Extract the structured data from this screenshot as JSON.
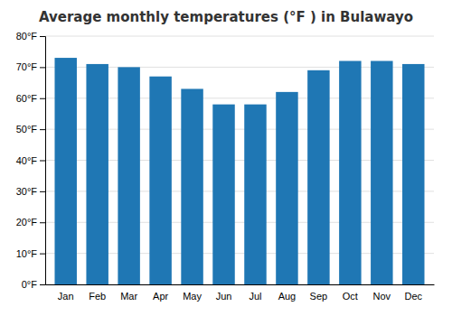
{
  "chart_data": {
    "type": "bar",
    "title": "Average monthly temperatures (°F ) in Bulawayo",
    "categories": [
      "Jan",
      "Feb",
      "Mar",
      "Apr",
      "May",
      "Jun",
      "Jul",
      "Aug",
      "Sep",
      "Oct",
      "Nov",
      "Dec"
    ],
    "values": [
      73,
      71,
      70,
      67,
      63,
      58,
      58,
      62,
      69,
      72,
      72,
      71
    ],
    "ylim": [
      0,
      80
    ],
    "yticks": [
      {
        "value": 0,
        "label": "0°F"
      },
      {
        "value": 10,
        "label": "10°F"
      },
      {
        "value": 20,
        "label": "20°F"
      },
      {
        "value": 30,
        "label": "30°F"
      },
      {
        "value": 40,
        "label": "40°F"
      },
      {
        "value": 50,
        "label": "50°F"
      },
      {
        "value": 60,
        "label": "60°F"
      },
      {
        "value": 70,
        "label": "70°F"
      },
      {
        "value": 80,
        "label": "80°F"
      }
    ],
    "grid": true
  }
}
